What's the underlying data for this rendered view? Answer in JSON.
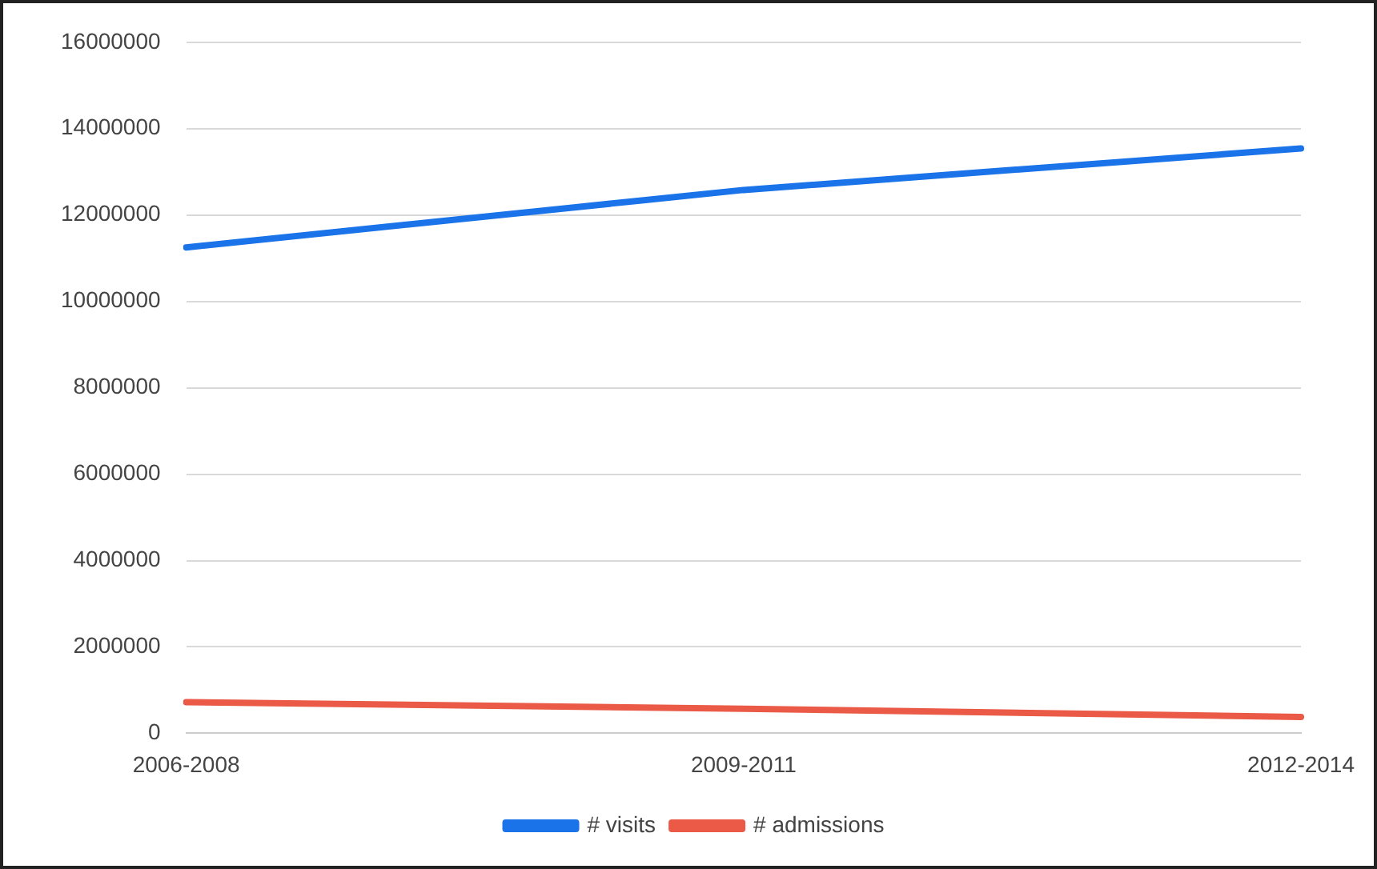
{
  "chart_data": {
    "type": "line",
    "categories": [
      "2006-2008",
      "2009-2011",
      "2012-2014"
    ],
    "series": [
      {
        "name": "# visits",
        "color": "#1a73e8",
        "values": [
          11250000,
          12580000,
          13540000
        ]
      },
      {
        "name": "# admissions",
        "color": "#ea5a47",
        "values": [
          720000,
          570000,
          380000
        ]
      }
    ],
    "ylim": [
      0,
      16000000
    ],
    "yticks": [
      0,
      2000000,
      4000000,
      6000000,
      8000000,
      10000000,
      12000000,
      14000000,
      16000000
    ],
    "grid": "y",
    "legend": "bottom",
    "marker": "none",
    "line_style": "solid"
  }
}
